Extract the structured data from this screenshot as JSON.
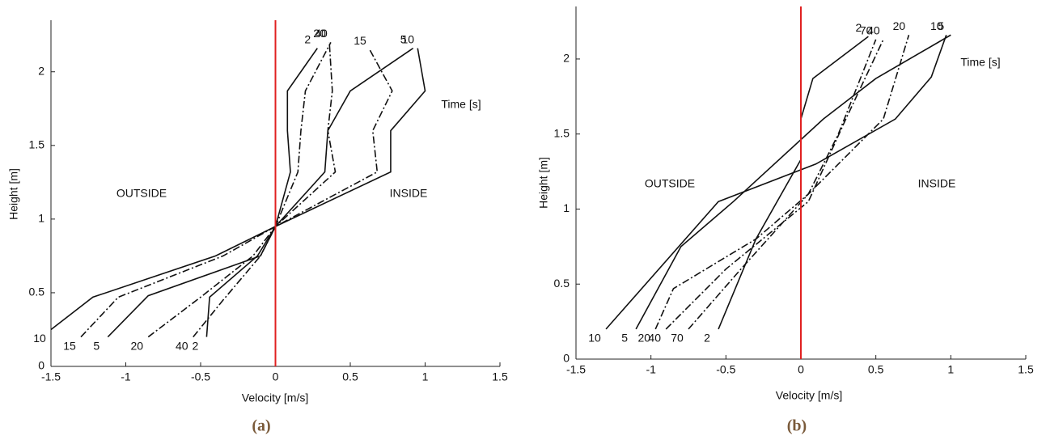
{
  "chart_data": [
    {
      "type": "line",
      "caption": "(a)",
      "x_label": "Velocity [m/s]",
      "y_label": "Height [m]",
      "annotations": {
        "outside": "OUTSIDE",
        "inside": "INSIDE",
        "legend_title": "Time [s]"
      },
      "xlim": [
        -1.5,
        1.5
      ],
      "ylim": [
        0,
        2.35
      ],
      "xticks": [
        -1.5,
        -1,
        -0.5,
        0,
        0.5,
        1,
        1.5
      ],
      "yticks": [
        0,
        0.5,
        1,
        1.5,
        2
      ],
      "vline": 0,
      "vline_color": "#e02020",
      "series": [
        {
          "name": "10",
          "color": "#111111",
          "style": "solid",
          "x": [
            -1.5,
            -1.22,
            -0.4,
            0,
            0.77,
            0.77,
            1.0,
            0.95
          ],
          "values": [
            0.25,
            0.47,
            0.75,
            0.95,
            1.32,
            1.6,
            1.87,
            2.16
          ]
        },
        {
          "name": "15",
          "color": "#111111",
          "style": "dashdot",
          "x": [
            -1.3,
            -1.05,
            -0.35,
            0,
            0.68,
            0.65,
            0.78,
            0.63
          ],
          "values": [
            0.2,
            0.47,
            0.75,
            0.95,
            1.32,
            1.6,
            1.87,
            2.15
          ]
        },
        {
          "name": "5",
          "color": "#111111",
          "style": "solid",
          "x": [
            -1.12,
            -0.85,
            -0.1,
            0,
            0.33,
            0.35,
            0.5,
            0.92
          ],
          "values": [
            0.2,
            0.48,
            0.75,
            0.95,
            1.32,
            1.6,
            1.87,
            2.16
          ]
        },
        {
          "name": "20",
          "color": "#111111",
          "style": "dashdot",
          "x": [
            -0.85,
            -0.5,
            -0.15,
            0,
            0.4,
            0.35,
            0.38,
            0.36
          ],
          "values": [
            0.2,
            0.47,
            0.75,
            0.95,
            1.32,
            1.6,
            1.87,
            2.2
          ]
        },
        {
          "name": "2",
          "color": "#111111",
          "style": "solid",
          "x": [
            -0.46,
            -0.44,
            -0.12,
            0,
            0.1,
            0.08,
            0.08,
            0.28
          ],
          "values": [
            0.2,
            0.47,
            0.75,
            0.95,
            1.32,
            1.6,
            1.87,
            2.16
          ]
        },
        {
          "name": "40",
          "color": "#111111",
          "style": "dashdot",
          "x": [
            -0.55,
            -0.35,
            -0.1,
            0,
            0.15,
            0.17,
            0.2,
            0.37
          ],
          "values": [
            0.2,
            0.45,
            0.75,
            0.95,
            1.32,
            1.6,
            1.87,
            2.2
          ]
        }
      ]
    },
    {
      "type": "line",
      "caption": "(b)",
      "x_label": "Velocity [m/s]",
      "y_label": "Height [m]",
      "annotations": {
        "outside": "OUTSIDE",
        "inside": "INSIDE",
        "legend_title": "Time [s]"
      },
      "xlim": [
        -1.5,
        1.5
      ],
      "ylim": [
        0,
        2.35
      ],
      "xticks": [
        -1.5,
        -1,
        -0.5,
        0,
        0.5,
        1,
        1.5
      ],
      "yticks": [
        0,
        0.5,
        1,
        1.5,
        2
      ],
      "vline": 0,
      "vline_color": "#e02020",
      "series": [
        {
          "name": "10",
          "color": "#111111",
          "style": "solid",
          "x": [
            -1.3,
            -0.55,
            0.1,
            0.63,
            0.87,
            0.97
          ],
          "values": [
            0.2,
            1.05,
            1.3,
            1.6,
            1.88,
            2.16
          ]
        },
        {
          "name": "5",
          "color": "#111111",
          "style": "solid",
          "x": [
            -1.1,
            -0.8,
            -0.45,
            0.15,
            0.5,
            1.0
          ],
          "values": [
            0.2,
            0.75,
            1.05,
            1.6,
            1.87,
            2.16
          ]
        },
        {
          "name": "20",
          "color": "#111111",
          "style": "dashdot",
          "x": [
            -0.97,
            -0.85,
            -0.3,
            0.05,
            0.55,
            0.72
          ],
          "values": [
            0.2,
            0.47,
            0.8,
            1.1,
            1.6,
            2.16
          ]
        },
        {
          "name": "40",
          "color": "#111111",
          "style": "dashdot",
          "x": [
            -0.9,
            -0.5,
            0.05,
            0.3,
            0.55
          ],
          "values": [
            0.2,
            0.6,
            1.05,
            1.6,
            2.13
          ]
        },
        {
          "name": "70",
          "color": "#111111",
          "style": "dashdot",
          "x": [
            -0.75,
            -0.4,
            0.05,
            0.25,
            0.5
          ],
          "values": [
            0.2,
            0.6,
            1.1,
            1.5,
            2.13
          ]
        },
        {
          "name": "2",
          "color": "#111111",
          "style": "solid",
          "x": [
            -0.55,
            -0.3,
            0,
            0,
            0.08,
            0.45
          ],
          "values": [
            0.2,
            0.8,
            1.33,
            1.6,
            1.87,
            2.15
          ]
        }
      ]
    }
  ]
}
